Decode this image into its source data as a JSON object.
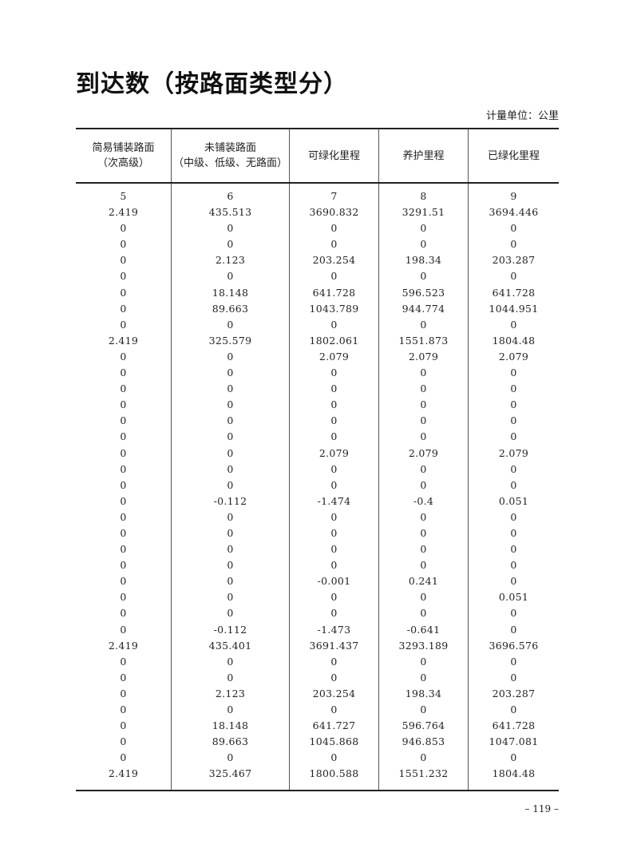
{
  "title": "到达数（按路面类型分）",
  "unit": "计量单位：公里",
  "columns": [
    {
      "line1": "简易铺装路面",
      "line2": "（次高级）"
    },
    {
      "line1": "未铺装路面",
      "line2": "（中级、低级、无路面）"
    },
    {
      "line1": "可绿化里程",
      "line2": ""
    },
    {
      "line1": "养护里程",
      "line2": ""
    },
    {
      "line1": "已绿化里程",
      "line2": ""
    }
  ],
  "rows": [
    [
      "5",
      "6",
      "7",
      "8",
      "9"
    ],
    [
      "2.419",
      "435.513",
      "3690.832",
      "3291.51",
      "3694.446"
    ],
    [
      "0",
      "0",
      "0",
      "0",
      "0"
    ],
    [
      "0",
      "0",
      "0",
      "0",
      "0"
    ],
    [
      "0",
      "2.123",
      "203.254",
      "198.34",
      "203.287"
    ],
    [
      "0",
      "0",
      "0",
      "0",
      "0"
    ],
    [
      "0",
      "18.148",
      "641.728",
      "596.523",
      "641.728"
    ],
    [
      "0",
      "89.663",
      "1043.789",
      "944.774",
      "1044.951"
    ],
    [
      "0",
      "0",
      "0",
      "0",
      "0"
    ],
    [
      "2.419",
      "325.579",
      "1802.061",
      "1551.873",
      "1804.48"
    ],
    [
      "0",
      "0",
      "2.079",
      "2.079",
      "2.079"
    ],
    [
      "0",
      "0",
      "0",
      "0",
      "0"
    ],
    [
      "0",
      "0",
      "0",
      "0",
      "0"
    ],
    [
      "0",
      "0",
      "0",
      "0",
      "0"
    ],
    [
      "0",
      "0",
      "0",
      "0",
      "0"
    ],
    [
      "0",
      "0",
      "0",
      "0",
      "0"
    ],
    [
      "0",
      "0",
      "2.079",
      "2.079",
      "2.079"
    ],
    [
      "0",
      "0",
      "0",
      "0",
      "0"
    ],
    [
      "0",
      "0",
      "0",
      "0",
      "0"
    ],
    [
      "0",
      "-0.112",
      "-1.474",
      "-0.4",
      "0.051"
    ],
    [
      "0",
      "0",
      "0",
      "0",
      "0"
    ],
    [
      "0",
      "0",
      "0",
      "0",
      "0"
    ],
    [
      "0",
      "0",
      "0",
      "0",
      "0"
    ],
    [
      "0",
      "0",
      "0",
      "0",
      "0"
    ],
    [
      "0",
      "0",
      "-0.001",
      "0.241",
      "0"
    ],
    [
      "0",
      "0",
      "0",
      "0",
      "0.051"
    ],
    [
      "0",
      "0",
      "0",
      "0",
      "0"
    ],
    [
      "0",
      "-0.112",
      "-1.473",
      "-0.641",
      "0"
    ],
    [
      "2.419",
      "435.401",
      "3691.437",
      "3293.189",
      "3696.576"
    ],
    [
      "0",
      "0",
      "0",
      "0",
      "0"
    ],
    [
      "0",
      "0",
      "0",
      "0",
      "0"
    ],
    [
      "0",
      "2.123",
      "203.254",
      "198.34",
      "203.287"
    ],
    [
      "0",
      "0",
      "0",
      "0",
      "0"
    ],
    [
      "0",
      "18.148",
      "641.727",
      "596.764",
      "641.728"
    ],
    [
      "0",
      "89.663",
      "1045.868",
      "946.853",
      "1047.081"
    ],
    [
      "0",
      "0",
      "0",
      "0",
      "0"
    ],
    [
      "2.419",
      "325.467",
      "1800.588",
      "1551.232",
      "1804.48"
    ]
  ],
  "page_number": "– 119 –"
}
